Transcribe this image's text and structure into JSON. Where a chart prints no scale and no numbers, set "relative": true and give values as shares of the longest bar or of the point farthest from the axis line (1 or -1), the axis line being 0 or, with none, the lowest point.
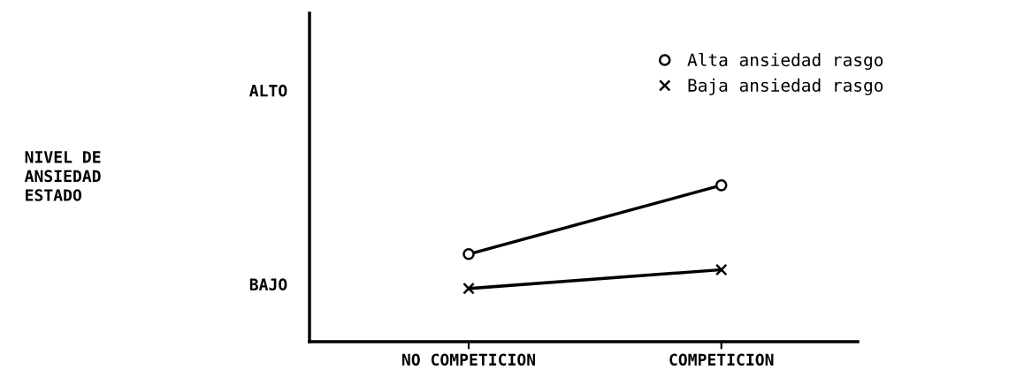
{
  "chart_data": {
    "type": "line",
    "relative": true,
    "categories": [
      "NO COMPETICION",
      "COMPETICION"
    ],
    "series": [
      {
        "name": "Alta ansiedad rasgo",
        "color": "#000000",
        "marker": "circle",
        "values": [
          0.56,
          1
        ]
      },
      {
        "name": "Baja ansiedad rasgo",
        "color": "#000000",
        "marker": "cross",
        "values": [
          0.34,
          0.46
        ]
      }
    ],
    "annotations": [
      "ALTO",
      "BAJO",
      "NIVEL DE\nANSIEDAD\nESTADO"
    ],
    "grid": false,
    "legend": "top right",
    "line_style": "solid"
  }
}
